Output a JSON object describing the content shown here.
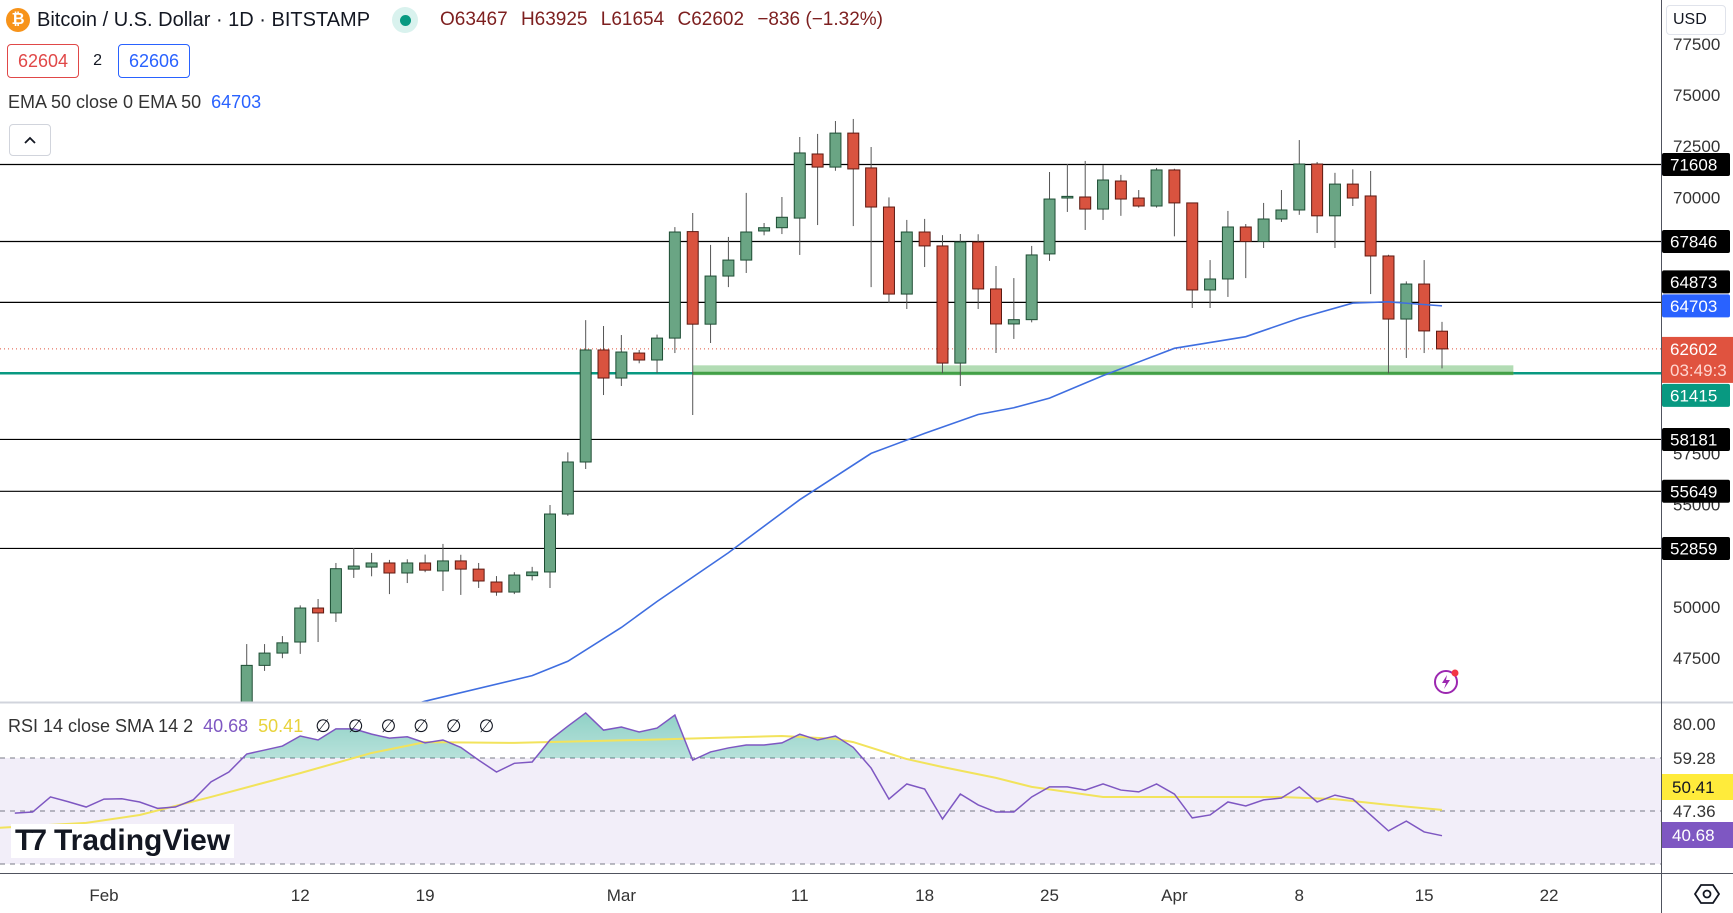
{
  "header": {
    "symbol_icon": "bitcoin-icon",
    "title": "Bitcoin / U.S. Dollar · 1D · BITSTAMP",
    "open": "O63467",
    "high": "H63925",
    "low": "L61654",
    "close": "C62602",
    "change": "−836 (−1.32%)",
    "sell_price": "62604",
    "spread": "2",
    "buy_price": "62606",
    "ema_legend": "EMA 50 close 0 EMA 50",
    "ema_value": "64703",
    "collapse_icon": "chevron-up-icon"
  },
  "price_axis": {
    "currency": "USD",
    "ticks": [
      "77500",
      "75000",
      "72500",
      "70000",
      "57500",
      "55000",
      "50000",
      "47500"
    ]
  },
  "rsi_legend": {
    "label": "RSI 14 close SMA 14 2",
    "rsi_value": "40.68",
    "sma_value": "50.41",
    "na_values": "∅ ∅ ∅ ∅ ∅ ∅"
  },
  "rsi_axis": {
    "ticks": [
      "80.00",
      "59.28",
      "47.36"
    ],
    "sma_label": "50.41",
    "rsi_label": "40.68"
  },
  "watermark": "TradingView",
  "colors": {
    "up": "#6aa584",
    "down": "#d9533f",
    "ema": "#3f6ee0",
    "level": "#000000",
    "support": "#089981",
    "rsi": "#7e57c2",
    "rsi_sma": "#f2e35c",
    "current": "#e0533f"
  },
  "chart_data": {
    "type": "candlestick",
    "interval": "1D",
    "start": "Feb 9",
    "ohlc": [
      [
        45300,
        48190,
        45250,
        47150
      ],
      [
        47150,
        48190,
        46880,
        47750
      ],
      [
        47750,
        48580,
        47500,
        48250
      ],
      [
        48290,
        50080,
        47710,
        49950
      ],
      [
        49950,
        50390,
        48290,
        49710
      ],
      [
        49710,
        52150,
        49270,
        51870
      ],
      [
        51850,
        52880,
        51420,
        52000
      ],
      [
        51950,
        52640,
        51500,
        52150
      ],
      [
        52150,
        52300,
        50630,
        51660
      ],
      [
        51660,
        52330,
        51170,
        52150
      ],
      [
        52150,
        52560,
        51700,
        51800
      ],
      [
        51760,
        53080,
        50780,
        52250
      ],
      [
        52250,
        52550,
        50590,
        51850
      ],
      [
        51850,
        52150,
        50930,
        51270
      ],
      [
        51220,
        51510,
        50550,
        50730
      ],
      [
        50730,
        51700,
        50630,
        51560
      ],
      [
        51530,
        51960,
        51300,
        51710
      ],
      [
        51710,
        54980,
        50930,
        54540
      ],
      [
        54540,
        57550,
        54450,
        57080
      ],
      [
        57080,
        64010,
        56740,
        62550
      ],
      [
        62550,
        63720,
        60350,
        61180
      ],
      [
        61180,
        63280,
        60790,
        62450
      ],
      [
        62400,
        62550,
        61900,
        62060
      ],
      [
        62060,
        63300,
        61420,
        63130
      ],
      [
        63130,
        68550,
        62400,
        68310
      ],
      [
        68330,
        69240,
        59375,
        63810
      ],
      [
        63810,
        67680,
        62890,
        66160
      ],
      [
        66160,
        68070,
        65620,
        66940
      ],
      [
        66940,
        70220,
        66310,
        68310
      ],
      [
        68360,
        68750,
        68150,
        68520
      ],
      [
        68520,
        70020,
        68210,
        69030
      ],
      [
        68990,
        72950,
        67190,
        72170
      ],
      [
        72120,
        73100,
        68650,
        71480
      ],
      [
        71480,
        73730,
        71300,
        73140
      ],
      [
        73140,
        73830,
        68600,
        71390
      ],
      [
        71440,
        72460,
        65620,
        69530
      ],
      [
        69530,
        70000,
        64840,
        65280
      ],
      [
        65280,
        68900,
        64550,
        68310
      ],
      [
        68310,
        68950,
        66600,
        67630
      ],
      [
        67630,
        68160,
        61420,
        61910
      ],
      [
        61910,
        68210,
        60790,
        67820
      ],
      [
        67820,
        68200,
        64550,
        65530
      ],
      [
        65530,
        66650,
        62400,
        63820
      ],
      [
        63820,
        66060,
        63090,
        64030
      ],
      [
        64030,
        67630,
        63900,
        67190
      ],
      [
        67240,
        71240,
        66900,
        69920
      ],
      [
        69970,
        71630,
        69290,
        70050
      ],
      [
        70020,
        71780,
        68410,
        69430
      ],
      [
        69430,
        71580,
        68900,
        70850
      ],
      [
        70800,
        71100,
        69100,
        69920
      ],
      [
        69970,
        70360,
        69500,
        69580
      ],
      [
        69580,
        71440,
        69500,
        71340
      ],
      [
        71340,
        71400,
        68100,
        69730
      ],
      [
        69730,
        69750,
        64600,
        65480
      ],
      [
        65480,
        66940,
        64600,
        66016
      ],
      [
        66016,
        69340,
        65140,
        68555
      ],
      [
        68555,
        68700,
        66060,
        67846
      ],
      [
        67846,
        69730,
        67530,
        68945
      ],
      [
        68945,
        70360,
        68800,
        69385
      ],
      [
        69385,
        72800,
        69150,
        71630
      ],
      [
        71630,
        71730,
        68260,
        69100
      ],
      [
        69100,
        71200,
        67530,
        70650
      ],
      [
        70650,
        71370,
        69580,
        69970
      ],
      [
        70070,
        71290,
        65280,
        67140
      ],
      [
        67140,
        67200,
        61415,
        64060
      ],
      [
        64060,
        65900,
        62160,
        65770
      ],
      [
        65770,
        66940,
        62400,
        63480
      ],
      [
        63467,
        63925,
        61654,
        62602
      ]
    ],
    "ema50": [
      [
        "Feb 17",
        44900
      ],
      [
        "Feb 19",
        45400
      ],
      [
        "Feb 25",
        46650
      ],
      [
        "Feb 27",
        47350
      ],
      [
        "Mar 1",
        49000
      ],
      [
        "Mar 3",
        50270
      ],
      [
        "Mar 7",
        52650
      ],
      [
        "Mar 11",
        55240
      ],
      [
        "Mar 15",
        57500
      ],
      [
        "Mar 18",
        58480
      ],
      [
        "Mar 21",
        59400
      ],
      [
        "Mar 23",
        59730
      ],
      [
        "Mar 25",
        60200
      ],
      [
        "Mar 28",
        61300
      ],
      [
        "Apr 1",
        62630
      ],
      [
        "Apr 5",
        63200
      ],
      [
        "Apr 8",
        64100
      ],
      [
        "Apr 11",
        64840
      ],
      [
        "Apr 13",
        64900
      ],
      [
        "Apr 16",
        64703
      ]
    ],
    "levels": [
      "71608",
      "67846",
      "64873",
      "58181",
      "55649",
      "52859"
    ],
    "support": {
      "value": "61415",
      "zone": [
        61415,
        61800
      ],
      "from": "Mar 5",
      "to": "Apr 20"
    },
    "current": {
      "price": "62602",
      "countdown": "03:49:3"
    },
    "price_range": [
      45360,
      79300
    ],
    "time_ticks": [
      {
        "label": "Feb",
        "date": "Feb 1"
      },
      {
        "label": "12",
        "date": "Feb 12"
      },
      {
        "label": "19",
        "date": "Feb 19"
      },
      {
        "label": "Mar",
        "date": "Mar 1"
      },
      {
        "label": "11",
        "date": "Mar 11"
      },
      {
        "label": "18",
        "date": "Mar 18"
      },
      {
        "label": "25",
        "date": "Mar 25"
      },
      {
        "label": "Apr",
        "date": "Apr 1"
      },
      {
        "label": "8",
        "date": "Apr 8"
      },
      {
        "label": "15",
        "date": "Apr 15"
      },
      {
        "label": "22",
        "date": "Apr 22"
      }
    ],
    "rsi": {
      "start": "Jan 27",
      "values": [
        49.2,
        49.6,
        55.3,
        53.5,
        51.5,
        54.5,
        54.6,
        53.4,
        51,
        51.5,
        54.2,
        61,
        64.7,
        71.5,
        73,
        74.5,
        78.3,
        76.8,
        81,
        81,
        79,
        77.5,
        78,
        75.7,
        76.8,
        74,
        69.2,
        64.7,
        68,
        68.5,
        76.8,
        82,
        87,
        80.5,
        81.7,
        79.8,
        81.3,
        86.2,
        69.2,
        72.3,
        73.8,
        74.9,
        74.9,
        75.7,
        79,
        76.8,
        78.3,
        74,
        66.2,
        54.5,
        60.2,
        58.3,
        47,
        56.4,
        52.3,
        49.6,
        49.6,
        55.3,
        59.1,
        59.1,
        57.9,
        60.2,
        57.9,
        57.2,
        60.2,
        56.4,
        47.4,
        48.5,
        53.4,
        51.9,
        54.2,
        54.9,
        59.1,
        53.4,
        56,
        54.5,
        48.5,
        42.5,
        46.2,
        42.1,
        40.68
      ],
      "bands": [
        70,
        50,
        30
      ]
    },
    "rsi_sma": [
      [
        "Jan 26",
        43.6
      ],
      [
        "Jan 31",
        45.5
      ],
      [
        "Feb 3",
        48.5
      ],
      [
        "Feb 7",
        55.3
      ],
      [
        "Feb 12",
        64.3
      ],
      [
        "Feb 16",
        71.9
      ],
      [
        "Feb 19",
        76
      ],
      [
        "Feb 24",
        75.7
      ],
      [
        "Mar 2",
        76.8
      ],
      [
        "Mar 10",
        78.3
      ],
      [
        "Mar 13",
        77.2
      ],
      [
        "Mar 14",
        76
      ],
      [
        "Mar 17",
        69.6
      ],
      [
        "Mar 19",
        66.6
      ],
      [
        "Mar 22",
        62.5
      ],
      [
        "Mar 24",
        59.1
      ],
      [
        "Mar 28",
        55.3
      ],
      [
        "Apr 2",
        55.3
      ],
      [
        "Apr 7",
        55.3
      ],
      [
        "Apr 10",
        54.5
      ],
      [
        "Apr 13",
        52.3
      ],
      [
        "Apr 16",
        50.41
      ]
    ]
  }
}
